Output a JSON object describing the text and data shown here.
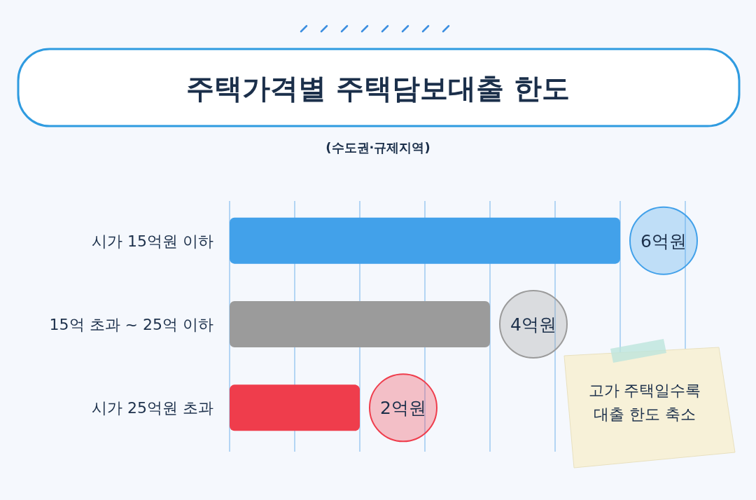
{
  "chart_data": {
    "type": "bar",
    "orientation": "horizontal",
    "title": "주택가격별 주택담보대출 한도",
    "subtitle": "(수도권·규제지역)",
    "categories": [
      "시가 15억원 이하",
      "15억 초과 ~ 25억 이하",
      "시가 25억원 초과"
    ],
    "values": [
      6,
      4,
      2
    ],
    "colors": [
      "#42a1ea",
      "#9b9b9b",
      "#ef3d4c"
    ],
    "value_labels": [
      "6억원",
      "4억원",
      "2억원"
    ],
    "xlim": [
      0,
      7
    ],
    "xticks": [
      {
        "value": 0,
        "label": null
      },
      {
        "value": 1,
        "label": null
      },
      {
        "value": 2,
        "label": null
      },
      {
        "value": 3,
        "label": null
      },
      {
        "value": 4,
        "label": null
      },
      {
        "value": 5,
        "label": null
      },
      {
        "value": 6,
        "label": null
      },
      {
        "value": 7,
        "label": null
      }
    ],
    "grid": "x",
    "tick_labels": "y",
    "annotations": [
      "고가 주택일수록 대출 한도 축소"
    ]
  }
}
